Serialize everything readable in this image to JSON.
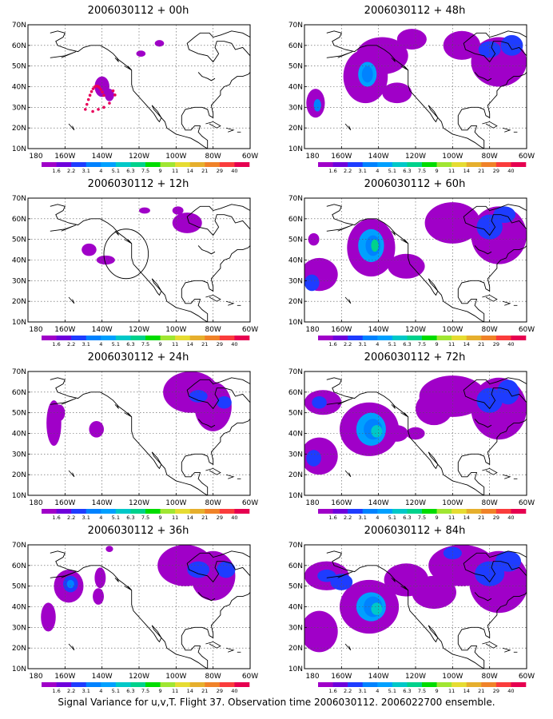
{
  "figure": {
    "caption": "Signal Variance for u,v,T. Flight 37. Observation time 2006030112. 2006022700 ensemble."
  },
  "axes": {
    "lat_ticks": [
      "10N",
      "20N",
      "30N",
      "40N",
      "50N",
      "60N",
      "70N"
    ],
    "lon_ticks": [
      "180",
      "160W",
      "140W",
      "120W",
      "100W",
      "80W",
      "60W"
    ]
  },
  "colorbar": {
    "labels": [
      "1.6",
      "2.2",
      "3.1",
      "4",
      "5.1",
      "6.3",
      "7.5",
      "9",
      "11",
      "14",
      "21",
      "29",
      "40"
    ],
    "colors": [
      "#a000c8",
      "#6e00dc",
      "#1e3cff",
      "#0082ff",
      "#00a0ff",
      "#00c8c8",
      "#00d28c",
      "#00dc00",
      "#a0e632",
      "#e6dc32",
      "#e6af2d",
      "#f08228",
      "#fa3c3c",
      "#e60050"
    ]
  },
  "panels": [
    {
      "title": "2006030112 + 00h"
    },
    {
      "title": "2006030112 + 48h"
    },
    {
      "title": "2006030112 + 12h"
    },
    {
      "title": "2006030112 + 60h"
    },
    {
      "title": "2006030112 + 24h"
    },
    {
      "title": "2006030112 + 72h"
    },
    {
      "title": "2006030112 + 36h"
    },
    {
      "title": "2006030112 + 84h"
    }
  ]
}
